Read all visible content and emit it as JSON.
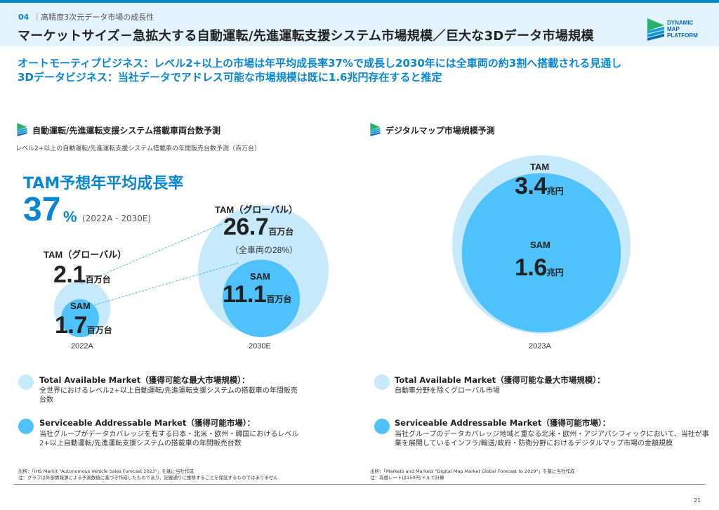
{
  "header": {
    "section_number": "04",
    "section_title": "｜高精度3次元データ市場の成長性",
    "page_title": "マーケットサイズ－急拡大する自動運転/先進運転支援システム市場規模／巨大な3Dデータ市場規模",
    "logo_lines": [
      "DYNAMIC",
      "MAP",
      "PLATFORM"
    ]
  },
  "lead": {
    "line1": "オートモーティブビジネス：レベル2+以上の市場は年平均成長率37%で成長し2030年には全車両の約3割へ搭載される見通し",
    "line2": "3Dデータビジネス：当社データでアドレス可能な市場規模は既に1.6兆円存在すると推定"
  },
  "left_section": {
    "title": "自動運転/先進運転支援システム搭載車両台数予測",
    "caption": "レベル2+以上の自動運転/先進運転支援システム搭載車の年間販売台数予測（百万台）",
    "cagr_title": "TAM予想年平均成長率",
    "cagr_value": "37",
    "cagr_unit": "%",
    "cagr_range": "(2022A - 2030E)"
  },
  "right_section": {
    "title": "デジタルマップ市場規模予測"
  },
  "chart_data": [
    {
      "type": "bubble",
      "title": "レベル2+以上の自動運転/先進運転支援システム搭載車の年間販売台数予測（百万台）",
      "unit": "百万台",
      "categories": [
        "2022A",
        "2030E"
      ],
      "series": [
        {
          "name": "TAM（グローバル）",
          "values": [
            2.1,
            26.7
          ]
        },
        {
          "name": "SAM",
          "values": [
            1.7,
            11.1
          ]
        }
      ],
      "annotations": [
        "（全車両の28%）"
      ],
      "cagr": "37%"
    },
    {
      "type": "bubble",
      "title": "デジタルマップ市場規模予測",
      "unit": "兆円",
      "categories": [
        "2023A"
      ],
      "series": [
        {
          "name": "TAM",
          "values": [
            3.4
          ]
        },
        {
          "name": "SAM",
          "values": [
            1.6
          ]
        }
      ]
    }
  ],
  "left_chart_labels": {
    "tam_2022_label": "TAM（グローバル）",
    "tam_2022_value": "2.1",
    "sam_2022_label": "SAM",
    "sam_2022_value": "1.7",
    "tam_2030_label": "TAM（グローバル）",
    "tam_2030_value": "26.7",
    "tam_2030_note": "（全車両の28%）",
    "sam_2030_label": "SAM",
    "sam_2030_value": "11.1",
    "unit": "百万台",
    "year_2022": "2022A",
    "year_2030": "2030E"
  },
  "right_chart_labels": {
    "tam_label": "TAM",
    "tam_value": "3.4",
    "sam_label": "SAM",
    "sam_value": "1.6",
    "unit": "兆円",
    "year": "2023A"
  },
  "legend_left": [
    {
      "title": "Total Available Market（獲得可能な最大市場規模）：",
      "desc": "全世界におけるレベル2+以上自動運転/先進運転支援システムの搭載車の年間販売台数"
    },
    {
      "title": "Serviceable Addressable Market（獲得可能市場）：",
      "desc": "当社グループがデータカバレッジを有する日本・北米・欧州・韓国におけるレベル2+以上自動運転/先進運転支援システムの搭載車の年間販売台数"
    }
  ],
  "legend_right": [
    {
      "title": "Total Available Market（獲得可能な最大市場規模）：",
      "desc": "自動車分野を除くグローバル市場"
    },
    {
      "title": "Serviceable Addressable Market（獲得可能市場）：",
      "desc": "当社グループのデータカバレッジ地域と重なる北米・欧州・アジアパシフィックにおいて、当社が事業を展開しているインフラ/輸送/政府・防衛分野におけるデジタルマップ市場の金額規模"
    }
  ],
  "colors": {
    "accent": "#0a86d0",
    "tam_fill": "#c6e9fb",
    "sam_fill": "#4fc1fb",
    "header_bg": "#e3f3fb"
  },
  "footnotes_left": {
    "source": "出所：「IHS Markit \"Autonomous Vehicle Sales Forecast 2023\"」を基に当社作成",
    "note": "注：グラフは外部情報源による予測数値に基づき作成したものであり、記載通りに推移することを保証するものではありません"
  },
  "footnotes_right": {
    "source": "出所：「Markets and Markets \"Digital Map Market Global Forecast to 2029\"」を基に当社作成",
    "note": "注：為替レートは150円/ドルで計算"
  },
  "page_number": "21"
}
